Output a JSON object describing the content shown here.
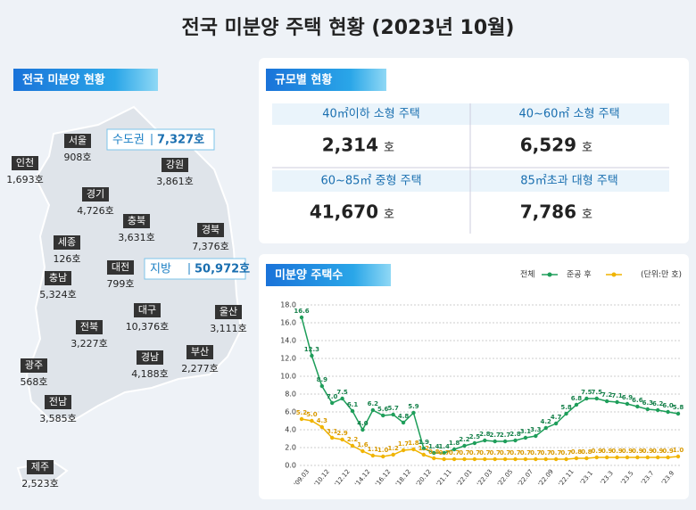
{
  "title": "전국 미분양 주택 현황 (2023년 10월)",
  "map": {
    "title": "전국 미분양 현황",
    "regions": [
      {
        "name": "인천",
        "value": "1,693호"
      },
      {
        "name": "서울",
        "value": "908호"
      },
      {
        "name": "경기",
        "value": "4,726호"
      },
      {
        "name": "강원",
        "value": "3,861호"
      },
      {
        "name": "충북",
        "value": "3,631호"
      },
      {
        "name": "경북",
        "value": "7,376호"
      },
      {
        "name": "세종",
        "value": "126호"
      },
      {
        "name": "충남",
        "value": "5,324호"
      },
      {
        "name": "대전",
        "value": "799호"
      },
      {
        "name": "대구",
        "value": "10,376호"
      },
      {
        "name": "울산",
        "value": "3,111호"
      },
      {
        "name": "전북",
        "value": "3,227호"
      },
      {
        "name": "경남",
        "value": "4,188호"
      },
      {
        "name": "부산",
        "value": "2,277호"
      },
      {
        "name": "광주",
        "value": "568호"
      },
      {
        "name": "전남",
        "value": "3,585호"
      },
      {
        "name": "제주",
        "value": "2,523호"
      }
    ],
    "summary": [
      {
        "name": "수도권",
        "value": "7,327호"
      },
      {
        "name": "지방",
        "value": "50,972호"
      }
    ]
  },
  "size": {
    "title": "규모별 현황",
    "items": [
      {
        "label": "40㎡이하 소형 주택",
        "value": "2,314",
        "unit": "호"
      },
      {
        "label": "40~60㎡ 소형 주택",
        "value": "6,529",
        "unit": "호"
      },
      {
        "label": "60~85㎡ 중형 주택",
        "value": "41,670",
        "unit": "호"
      },
      {
        "label": "85㎡초과 대형 주택",
        "value": "7,786",
        "unit": "호"
      }
    ]
  },
  "chart_data": {
    "type": "line",
    "title": "미분양 주택수",
    "unit_label": "(단위:만 호)",
    "categories": [
      "'09.03",
      null,
      "'10.12",
      null,
      "'12.12",
      null,
      "'14.12",
      null,
      "'16.12",
      null,
      "'18.12",
      null,
      "'20.12",
      null,
      "'21.11",
      null,
      "'22.01",
      null,
      "'22.03",
      null,
      "'22.05",
      null,
      "'22.07",
      null,
      "'22.09",
      null,
      "'22.11",
      null,
      "'23.1",
      null,
      "'23.3",
      null,
      "'23.5",
      null,
      "'23.7",
      null,
      "'23.9",
      null
    ],
    "series": [
      {
        "name": "전체",
        "color": "#1e9e5a",
        "values": [
          16.6,
          12.3,
          8.9,
          7.0,
          7.5,
          6.1,
          4.0,
          6.2,
          5.6,
          5.7,
          4.8,
          5.9,
          1.9,
          1.4,
          1.4,
          1.8,
          2.2,
          2.5,
          2.8,
          2.7,
          2.7,
          2.8,
          3.1,
          3.3,
          4.2,
          4.7,
          5.8,
          6.8,
          7.5,
          7.5,
          7.2,
          7.1,
          6.9,
          6.6,
          6.3,
          6.2,
          6.0,
          5.8
        ],
        "value_labels": [
          "16.6",
          "12.3",
          "8.9",
          "7.0",
          "7.5",
          "6.1",
          "4.0",
          "6.2",
          "5.6",
          "5.7",
          "4.8",
          "5.9",
          "1.9",
          "1.4",
          "1.4",
          "1.8",
          "2.2",
          "2.5",
          "2.8",
          "2.7",
          "2.7",
          "2.8",
          "3.1",
          "3.3",
          "4.2",
          "4.7",
          "5.8",
          "6.8",
          "7.5",
          "7.5",
          "7.2",
          "7.1",
          "6.9",
          "6.6",
          "6.3",
          "6.2",
          "6.0",
          "5.8"
        ]
      },
      {
        "name": "준공 후",
        "color": "#f0b400",
        "values": [
          5.2,
          5.0,
          4.3,
          3.1,
          2.9,
          2.2,
          1.6,
          1.1,
          1.0,
          1.2,
          1.7,
          1.8,
          1.2,
          0.8,
          0.7,
          0.7,
          0.7,
          0.7,
          0.7,
          0.7,
          0.7,
          0.7,
          0.7,
          0.7,
          0.7,
          0.7,
          0.7,
          0.8,
          0.8,
          0.9,
          0.9,
          0.9,
          0.9,
          0.9,
          0.9,
          0.9,
          0.9,
          1.0
        ],
        "value_labels": [
          "5.2",
          "5.0",
          "4.3",
          "3.1",
          "2.9",
          "2.2",
          "1.6",
          "1.1",
          "1.0",
          "1.2",
          "1.7",
          "1.8",
          "1.2",
          "0.8",
          "0.7",
          "0.7",
          "0.7",
          "0.7",
          "0.7",
          "0.7",
          "0.7",
          "0.7",
          "0.7",
          "0.7",
          "0.7",
          "0.7",
          "0.7",
          "0.8",
          "0.8",
          "0.9",
          "0.9",
          "0.9",
          "0.9",
          "0.9",
          "0.9",
          "0.9",
          "0.9",
          "1.0"
        ]
      }
    ],
    "ylim": [
      0,
      18
    ],
    "yticks": [
      {
        "value": 0,
        "label": "0.0"
      },
      {
        "value": 2,
        "label": "2.0"
      },
      {
        "value": 4,
        "label": "4.0"
      },
      {
        "value": 6,
        "label": "6.0"
      },
      {
        "value": 8,
        "label": "8.0"
      },
      {
        "value": 10,
        "label": "10.0"
      },
      {
        "value": 12,
        "label": "12.0"
      },
      {
        "value": 14,
        "label": "14.0"
      },
      {
        "value": 16,
        "label": "16.0"
      },
      {
        "value": 18,
        "label": "18.0"
      }
    ],
    "grid": true
  }
}
